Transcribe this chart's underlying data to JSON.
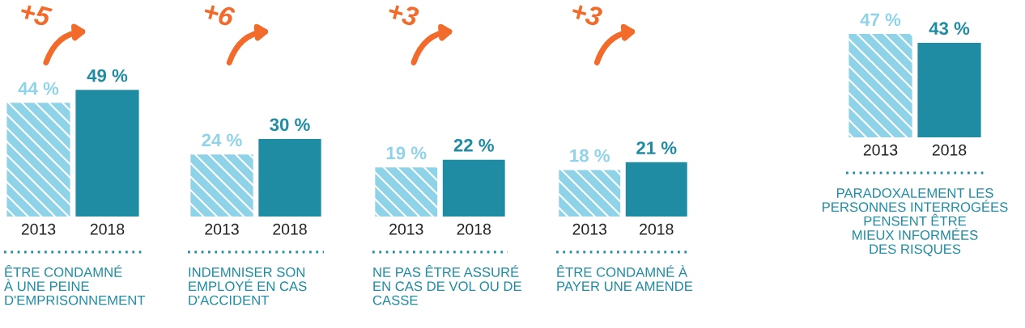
{
  "chart_data": [
    {
      "type": "bar",
      "categories": [
        "2013",
        "2018"
      ],
      "values": [
        44,
        49
      ],
      "colors": [
        "#8fd3e8",
        "#1f8ca3"
      ],
      "value_labels": [
        "44 %",
        "49 %"
      ],
      "xlabel": "ÊTRE CONDAMNÉ\nÀ UNE PEINE\nD'EMPRISONNEMENT",
      "annotations": [
        "+5"
      ],
      "tick_labels": "x"
    },
    {
      "type": "bar",
      "categories": [
        "2013",
        "2018"
      ],
      "values": [
        24,
        30
      ],
      "colors": [
        "#8fd3e8",
        "#1f8ca3"
      ],
      "value_labels": [
        "24 %",
        "30 %"
      ],
      "xlabel": "INDEMNISER SON\nEMPLOYÉ EN CAS\nD'ACCIDENT",
      "annotations": [
        "+6"
      ],
      "tick_labels": "x"
    },
    {
      "type": "bar",
      "categories": [
        "2013",
        "2018"
      ],
      "values": [
        19,
        22
      ],
      "colors": [
        "#8fd3e8",
        "#1f8ca3"
      ],
      "value_labels": [
        "19 %",
        "22 %"
      ],
      "xlabel": "NE PAS ÊTRE ASSURÉ\nEN CAS DE VOL OU DE\nCASSE",
      "annotations": [
        "+3"
      ],
      "tick_labels": "x"
    },
    {
      "type": "bar",
      "categories": [
        "2013",
        "2018"
      ],
      "values": [
        18,
        21
      ],
      "colors": [
        "#8fd3e8",
        "#1f8ca3"
      ],
      "value_labels": [
        "18 %",
        "21 %"
      ],
      "xlabel": "ÊTRE CONDAMNÉ À\nPAYER UNE AMENDE",
      "annotations": [
        "+3"
      ],
      "tick_labels": "x"
    },
    {
      "type": "bar",
      "categories": [
        "2013",
        "2018"
      ],
      "values": [
        47,
        43
      ],
      "colors": [
        "#8fd3e8",
        "#1f8ca3"
      ],
      "value_labels": [
        "47 %",
        "43 %"
      ],
      "xlabel": "PARADOXALEMENT LES\nPERSONNES INTERROGÉES\nPENSENT ÊTRE\nMIEUX INFORMÉES\nDES RISQUES",
      "tick_labels": "x"
    }
  ]
}
